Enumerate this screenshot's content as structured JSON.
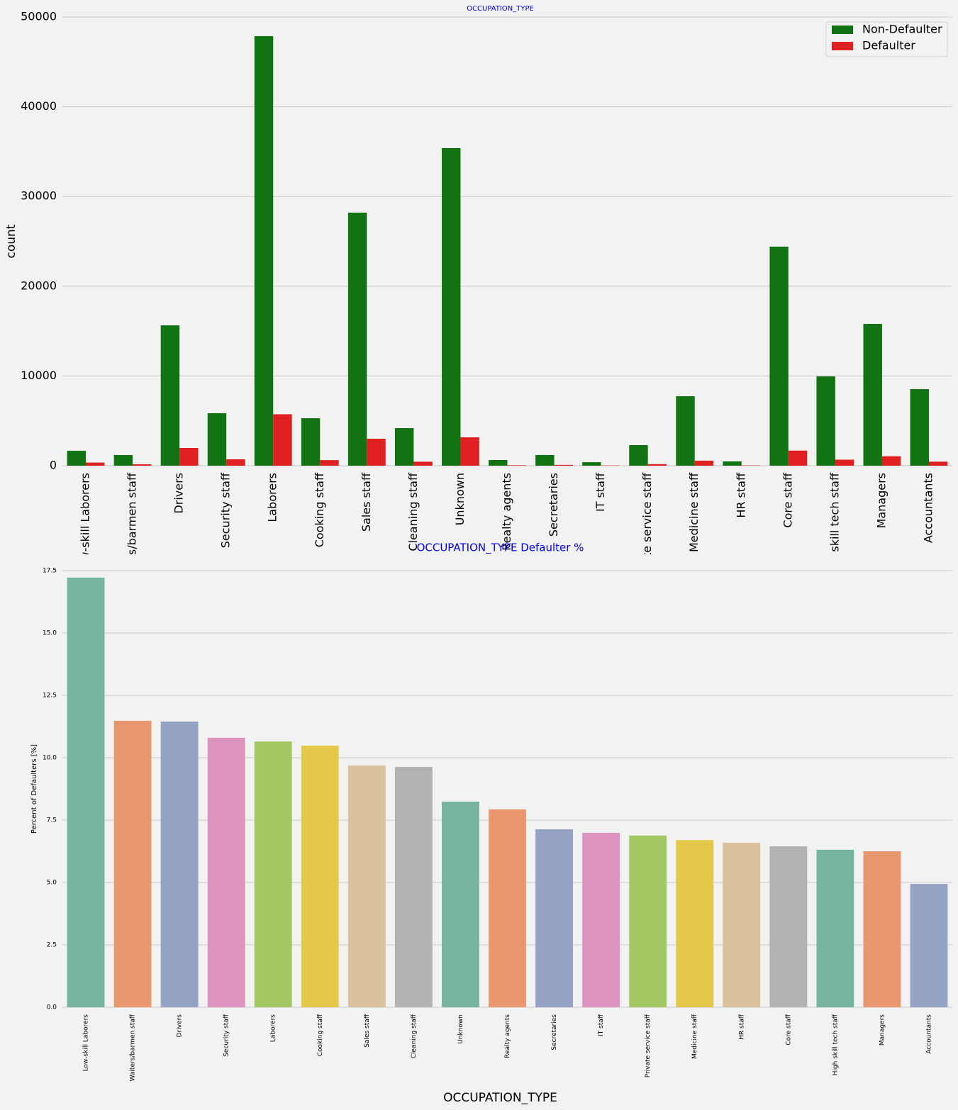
{
  "chart_data": [
    {
      "type": "grouped_bar",
      "title": "OCCUPATION_TYPE",
      "ylabel": "count",
      "categories": [
        "Low-skill Laborers",
        "Waiters/barmen staff",
        "Drivers",
        "Security staff",
        "Laborers",
        "Cooking staff",
        "Sales staff",
        "Cleaning staff",
        "Unknown",
        "Realty agents",
        "Secretaries",
        "IT staff",
        "Private service staff",
        "Medicine staff",
        "HR staff",
        "Core staff",
        "High skill tech staff",
        "Managers",
        "Accountants"
      ],
      "series": [
        {
          "name": "Non-Defaulter",
          "color": "#117311",
          "values": [
            1665,
            1185,
            15640,
            5845,
            47870,
            5290,
            28200,
            4185,
            35390,
            630,
            1190,
            390,
            2290,
            7740,
            480,
            24410,
            9950,
            15800,
            8530
          ]
        },
        {
          "name": "Defaulter",
          "color": "#e02020",
          "values": [
            346,
            154,
            1975,
            710,
            5730,
            620,
            3000,
            445,
            3160,
            55,
            92,
            30,
            175,
            560,
            35,
            1680,
            670,
            1050,
            450
          ]
        }
      ],
      "ylim": [
        0,
        50000
      ],
      "yticks": [
        0,
        10000,
        20000,
        30000,
        40000,
        50000
      ],
      "grid": true,
      "legend": "upper right"
    },
    {
      "type": "bar",
      "title": "OCCUPATION_TYPE Defaulter %",
      "ylabel": "Percent of Defaulters [%]",
      "xlabel": "OCCUPATION_TYPE",
      "categories": [
        "Low-skill Laborers",
        "Waiters/barmen staff",
        "Drivers",
        "Security staff",
        "Laborers",
        "Cooking staff",
        "Sales staff",
        "Cleaning staff",
        "Unknown",
        "Realty agents",
        "Secretaries",
        "IT staff",
        "Private service staff",
        "Medicine staff",
        "HR staff",
        "Core staff",
        "High skill tech staff",
        "Managers",
        "Accountants"
      ],
      "values": [
        17.22,
        11.48,
        11.45,
        10.8,
        10.65,
        10.48,
        9.69,
        9.63,
        8.24,
        7.93,
        7.13,
        6.99,
        6.88,
        6.7,
        6.59,
        6.45,
        6.31,
        6.25,
        4.94
      ],
      "colors": [
        "#75b5a0",
        "#e9976f",
        "#94a3c3",
        "#dc94bf",
        "#a3c863",
        "#e4c84a",
        "#dbc29e",
        "#b2b2b2"
      ],
      "ylim": [
        0,
        17.5
      ],
      "yticks": [
        {
          "value": 0,
          "label": "0.0"
        },
        {
          "value": 2.5,
          "label": "2.5"
        },
        {
          "value": 5,
          "label": "5.0"
        },
        {
          "value": 7.5,
          "label": "7.5"
        },
        {
          "value": 10,
          "label": "10.0"
        },
        {
          "value": 12.5,
          "label": "12.5"
        },
        {
          "value": 15,
          "label": "15.0"
        },
        {
          "value": 17.5,
          "label": "17.5"
        }
      ],
      "grid": true
    }
  ]
}
